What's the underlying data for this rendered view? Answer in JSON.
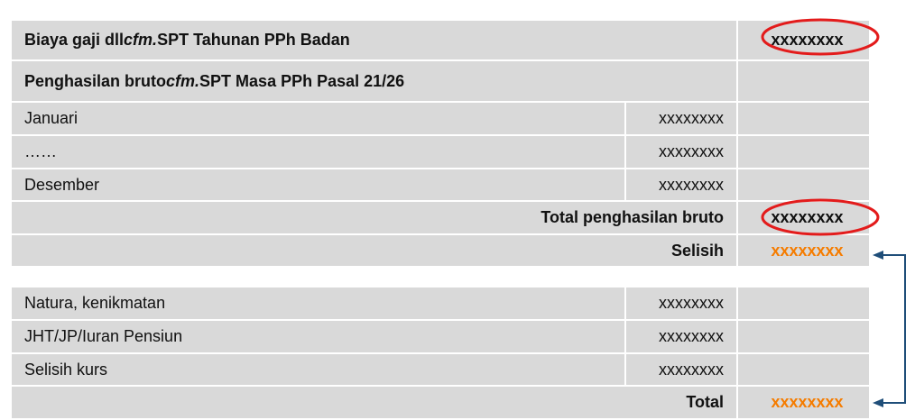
{
  "rows1": {
    "r1": {
      "pre": "Biaya gaji dll ",
      "em": "cfm.",
      "post": " SPT Tahunan PPh Badan",
      "value": "xxxxxxxx"
    },
    "r2": {
      "pre": "Penghasilan bruto ",
      "em": "cfm.",
      "post": " SPT Masa PPh Pasal 21/26"
    },
    "months": [
      {
        "label": "Januari",
        "value": "xxxxxxxx"
      },
      {
        "label": "……",
        "value": "xxxxxxxx"
      },
      {
        "label": "Desember",
        "value": "xxxxxxxx"
      }
    ],
    "total_label": "Total penghasilan bruto",
    "total_value": "xxxxxxxx",
    "selisih_label": "Selisih",
    "selisih_value": "xxxxxxxx"
  },
  "rows2": {
    "items": [
      {
        "label": "Natura, kenikmatan",
        "value": "xxxxxxxx"
      },
      {
        "label": "JHT/JP/Iuran Pensiun",
        "value": "xxxxxxxx"
      },
      {
        "label": "Selisih kurs",
        "value": "xxxxxxxx"
      }
    ],
    "total_label": "Total",
    "total_value": "xxxxxxxx"
  },
  "colors": {
    "cell": "#d9d9d9",
    "highlight": "#f57c00",
    "circle": "#e31b1b",
    "arrow": "#1f4e79"
  }
}
